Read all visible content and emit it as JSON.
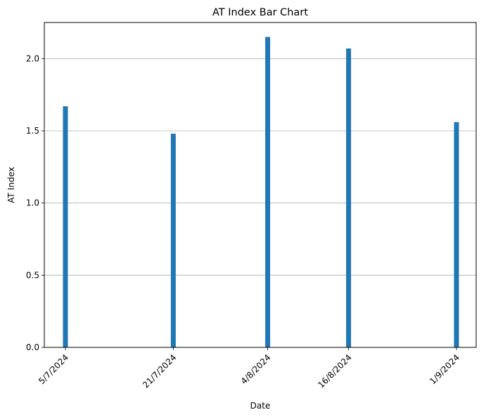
{
  "chart_data": {
    "type": "bar",
    "title": "AT Index Bar Chart",
    "xlabel": "Date",
    "ylabel": "AT Index",
    "categories": [
      "5/7/2024",
      "21/7/2024",
      "4/8/2024",
      "16/8/2024",
      "1/9/2024"
    ],
    "x": [
      "2024-07-05",
      "2024-07-21",
      "2024-08-04",
      "2024-08-16",
      "2024-09-01"
    ],
    "values": [
      1.67,
      1.48,
      2.15,
      2.07,
      1.56
    ],
    "xlim": [
      "2024-07-05",
      "2024-09-01"
    ],
    "ylim": [
      0,
      2.25
    ],
    "y_ticks": [
      "0.0",
      "0.5",
      "1.0",
      "1.5",
      "2.0"
    ],
    "grid": "y-only",
    "legend": "none",
    "bar_color": "#1f77b4",
    "grid_color": "#b0b0b0"
  }
}
